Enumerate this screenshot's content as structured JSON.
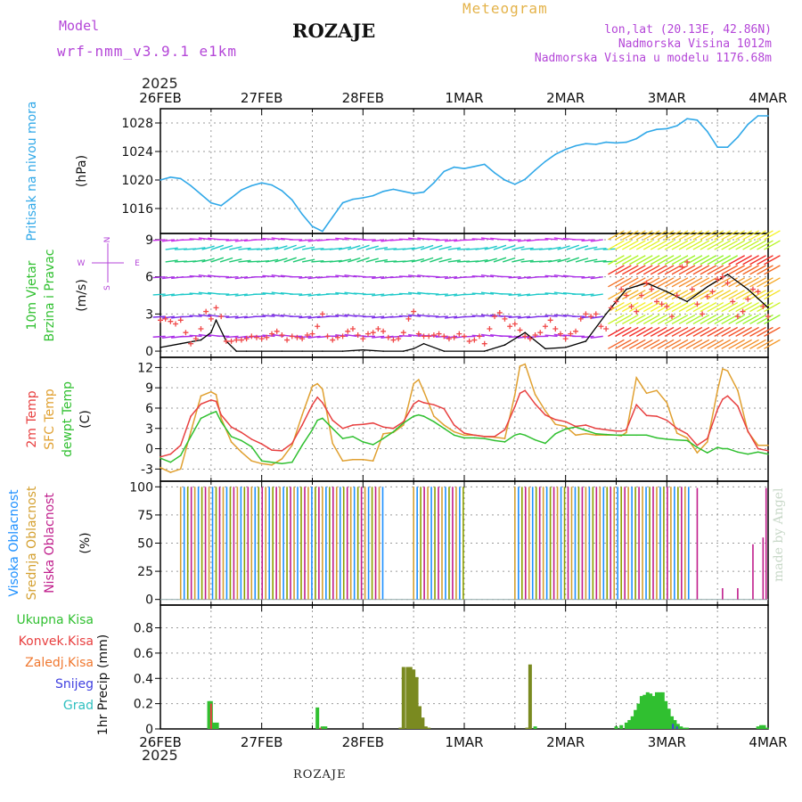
{
  "header": {
    "model_label": "Model",
    "model_name": "wrf-nmm_v3.9.1 e1km",
    "station": "ROZAJE",
    "meteogram": "Meteogram",
    "coords": "lon,lat (20.13E, 42.86N)",
    "elevation": "Nadmorska Visina 1012m",
    "model_elevation": "Nadmorska Visina u modelu 1176.68m",
    "year_top": "2025",
    "year_bottom": "2025",
    "footer": "ROZAJE",
    "credit": "made by Angel"
  },
  "colors": {
    "pressure": "#30a8e8",
    "wind_speed": "#000000",
    "temp_2m": "#e84040",
    "temp_sfc": "#e0a030",
    "dewpoint": "#30c030",
    "cloud_high": "#1e90ff",
    "cloud_mid": "#d4a030",
    "cloud_low": "#c01e8c",
    "precip_total": "#30c030",
    "precip_conv": "#e84040",
    "precip_frz": "#f07830",
    "snow": "#4040e0",
    "hail": "#30c0c0",
    "wind_direction_legend": "#b446d8"
  },
  "chart_data": [
    {
      "type": "line",
      "panel": "pressure",
      "ylabel_lines": [
        "Pritisak na nivou mora",
        "(hPa)"
      ],
      "x_ticks": [
        "26FEB",
        "27FEB",
        "28FEB",
        "1MAR",
        "2MAR",
        "3MAR",
        "4MAR"
      ],
      "ylim": [
        1012.5,
        1030
      ],
      "y_ticks": [
        1016,
        1020,
        1024,
        1028
      ],
      "series": [
        {
          "x": [
            0,
            0.1,
            0.2,
            0.3,
            0.4,
            0.5,
            0.6,
            0.7,
            0.8,
            0.9,
            1.0,
            1.1,
            1.2,
            1.3,
            1.4,
            1.5,
            1.6,
            1.7,
            1.8,
            1.9,
            2.0,
            2.1,
            2.2,
            2.3,
            2.4,
            2.5,
            2.6,
            2.7,
            2.8,
            2.9,
            3.0,
            3.1,
            3.2,
            3.3,
            3.4,
            3.5,
            3.6,
            3.7,
            3.8,
            3.9,
            4.0,
            4.1,
            4.2,
            4.3,
            4.4,
            4.5,
            4.6,
            4.7,
            4.8,
            4.9,
            5.0,
            5.1,
            5.2,
            5.3,
            5.4,
            5.5,
            5.6,
            5.7,
            5.8,
            5.9,
            6.0
          ],
          "values": [
            1020.0,
            1020.4,
            1020.2,
            1019.2,
            1018.0,
            1016.8,
            1016.4,
            1017.5,
            1018.6,
            1019.2,
            1019.6,
            1019.3,
            1018.5,
            1017.2,
            1015.2,
            1013.5,
            1012.8,
            1014.8,
            1016.8,
            1017.3,
            1017.5,
            1017.8,
            1018.4,
            1018.7,
            1018.4,
            1018.1,
            1018.3,
            1019.6,
            1021.2,
            1021.8,
            1021.6,
            1021.9,
            1022.2,
            1021.0,
            1020.0,
            1019.4,
            1020.1,
            1021.4,
            1022.6,
            1023.6,
            1024.3,
            1024.8,
            1025.1,
            1025.0,
            1025.3,
            1025.2,
            1025.3,
            1025.8,
            1026.7,
            1027.1,
            1027.2,
            1027.6,
            1028.6,
            1028.4,
            1026.8,
            1024.6,
            1024.6,
            1026.0,
            1027.8,
            1029.0,
            1029.0
          ]
        }
      ]
    },
    {
      "type": "line",
      "panel": "wind",
      "ylabel_lines": [
        "10m Vjetar",
        "Brzina i Pravac",
        "(m/s)"
      ],
      "legend_compass": {
        "north": "N",
        "east": "E",
        "west": "W",
        "south": "S"
      },
      "ylim": [
        -0.5,
        9.5
      ],
      "y_ticks": [
        0,
        3,
        6,
        9
      ],
      "series": [
        {
          "name": "speed",
          "x": [
            0,
            0.2,
            0.4,
            0.5,
            0.55,
            0.65,
            0.75,
            0.85,
            1.0,
            1.2,
            1.4,
            1.6,
            1.8,
            2.0,
            2.2,
            2.4,
            2.5,
            2.6,
            2.8,
            3.0,
            3.2,
            3.4,
            3.6,
            3.8,
            4.0,
            4.2,
            4.4,
            4.6,
            4.8,
            5.0,
            5.2,
            5.4,
            5.6,
            5.8,
            6.0
          ],
          "values": [
            0.3,
            0.6,
            0.9,
            1.5,
            2.5,
            0.8,
            0.0,
            0.0,
            0.0,
            0.0,
            0.0,
            0.0,
            0.0,
            0.1,
            0.0,
            0.0,
            0.2,
            0.6,
            0.0,
            0.0,
            0.0,
            0.5,
            1.5,
            0.2,
            0.3,
            0.8,
            3.0,
            5.0,
            5.5,
            4.8,
            4.0,
            5.2,
            6.2,
            5.0,
            3.5
          ]
        }
      ],
      "gust_markers_x": [
        0,
        0.05,
        0.1,
        0.15,
        0.2,
        0.25,
        0.3,
        0.35,
        0.4,
        0.45,
        0.5,
        0.55,
        0.6,
        0.65,
        0.7,
        0.75,
        0.8,
        0.85,
        0.9,
        0.95,
        1.0,
        1.05,
        1.1,
        1.15,
        1.2,
        1.25,
        1.3,
        1.35,
        1.4,
        1.45,
        1.5,
        1.55,
        1.6,
        1.65,
        1.7,
        1.75,
        1.8,
        1.85,
        1.9,
        1.95,
        2.0,
        2.05,
        2.1,
        2.15,
        2.2,
        2.25,
        2.3,
        2.35,
        2.4,
        2.45,
        2.5,
        2.55,
        2.6,
        2.65,
        2.7,
        2.75,
        2.8,
        2.85,
        2.9,
        2.95,
        3.0,
        3.05,
        3.1,
        3.15,
        3.2,
        3.25,
        3.3,
        3.35,
        3.4,
        3.45,
        3.5,
        3.55,
        3.6,
        3.65,
        3.7,
        3.75,
        3.8,
        3.85,
        3.9,
        3.95,
        4.0,
        4.05,
        4.1,
        4.15,
        4.2,
        4.25,
        4.3,
        4.35,
        4.4,
        4.45,
        4.5,
        4.55,
        4.6,
        4.65,
        4.7,
        4.75,
        4.8,
        4.85,
        4.9,
        4.95,
        5.0,
        5.05,
        5.1,
        5.15,
        5.2,
        5.25,
        5.3,
        5.35,
        5.4,
        5.45,
        5.5,
        5.55,
        5.6,
        5.65,
        5.7,
        5.75,
        5.8,
        5.85,
        5.9,
        5.95,
        6.0
      ],
      "gust_markers_y": [
        2.5,
        2.6,
        2.4,
        2.2,
        2.5,
        1.5,
        0.6,
        1.0,
        1.8,
        3.2,
        2.6,
        3.5,
        2.8,
        0.8,
        0.8,
        0.9,
        0.9,
        1.0,
        1.2,
        1.1,
        1.0,
        1.1,
        1.4,
        1.6,
        1.3,
        0.9,
        1.2,
        1.1,
        1.0,
        1.3,
        1.4,
        2.0,
        3.0,
        1.2,
        0.9,
        1.1,
        1.2,
        1.6,
        1.8,
        1.3,
        1.0,
        1.4,
        1.5,
        1.8,
        1.6,
        1.1,
        0.9,
        1.0,
        1.5,
        2.6,
        3.2,
        1.4,
        1.2,
        1.2,
        1.3,
        1.4,
        1.2,
        1.0,
        1.1,
        1.4,
        1.2,
        0.8,
        0.9,
        1.2,
        0.6,
        1.8,
        2.8,
        3.1,
        2.6,
        2.0,
        2.2,
        1.7,
        1.2,
        1.0,
        1.3,
        1.5,
        2.0,
        2.5,
        1.8,
        1.4,
        1.0,
        1.4,
        1.6,
        2.6,
        3.0,
        2.8,
        3.0,
        2.0,
        1.8,
        3.5,
        4.0,
        5.0,
        4.5,
        3.6,
        3.2,
        4.5,
        5.5,
        5.0,
        4.0,
        3.8,
        3.6,
        2.8,
        4.5,
        6.8,
        7.2,
        5.0,
        3.8,
        3.0,
        4.4,
        4.8,
        5.8,
        6.0,
        5.5,
        4.0,
        2.8,
        3.2,
        4.2,
        5.0,
        4.8,
        3.6,
        2.8
      ]
    },
    {
      "type": "line",
      "panel": "temperature",
      "ylabel_lines": [
        "2m Temp",
        "SFC Temp",
        "dewpt Temp",
        "(C)"
      ],
      "ylim": [
        -4.8,
        13.5
      ],
      "y_ticks": [
        -3,
        0,
        3,
        6,
        9,
        12
      ],
      "x": [
        0,
        0.1,
        0.2,
        0.3,
        0.4,
        0.5,
        0.55,
        0.6,
        0.7,
        0.8,
        0.9,
        1.0,
        1.1,
        1.2,
        1.3,
        1.4,
        1.5,
        1.55,
        1.6,
        1.7,
        1.8,
        1.9,
        2.0,
        2.1,
        2.2,
        2.3,
        2.4,
        2.5,
        2.55,
        2.6,
        2.7,
        2.8,
        2.9,
        3.0,
        3.1,
        3.2,
        3.3,
        3.4,
        3.5,
        3.55,
        3.6,
        3.7,
        3.8,
        3.9,
        4.0,
        4.1,
        4.2,
        4.3,
        4.4,
        4.5,
        4.55,
        4.6,
        4.7,
        4.8,
        4.9,
        5.0,
        5.1,
        5.2,
        5.3,
        5.4,
        5.5,
        5.55,
        5.6,
        5.7,
        5.8,
        5.9,
        6.0
      ],
      "series": [
        {
          "name": "2m Temp",
          "values": [
            -1.2,
            -0.8,
            0.5,
            4.8,
            6.6,
            7.2,
            7.0,
            5.0,
            3.2,
            2.4,
            1.4,
            0.7,
            -0.2,
            -0.3,
            0.8,
            3.5,
            6.5,
            7.6,
            6.8,
            4.2,
            3.0,
            3.5,
            3.6,
            3.8,
            3.2,
            3.0,
            4.0,
            6.6,
            7.1,
            6.8,
            6.5,
            5.9,
            3.5,
            2.3,
            2.0,
            1.8,
            1.8,
            2.8,
            6.2,
            8.2,
            8.6,
            6.6,
            5.0,
            4.3,
            4.0,
            3.3,
            3.5,
            3.0,
            2.8,
            2.6,
            2.6,
            2.8,
            6.5,
            4.9,
            4.8,
            4.2,
            3.0,
            2.2,
            0.5,
            1.5,
            5.8,
            7.3,
            7.8,
            6.3,
            2.6,
            0.0,
            -0.3
          ]
        },
        {
          "name": "SFC Temp",
          "values": [
            -2.8,
            -3.5,
            -3.0,
            2.5,
            7.8,
            8.4,
            8.0,
            4.5,
            1.0,
            -0.5,
            -1.8,
            -2.2,
            -2.4,
            -1.5,
            0.5,
            5.0,
            9.2,
            9.6,
            8.8,
            0.8,
            -1.8,
            -1.6,
            -1.6,
            -1.8,
            2.2,
            2.4,
            3.5,
            9.6,
            10.2,
            8.5,
            4.8,
            3.5,
            2.5,
            2.0,
            2.0,
            1.8,
            1.7,
            1.5,
            8.0,
            12.2,
            12.5,
            8.0,
            5.6,
            3.6,
            3.3,
            2.0,
            2.2,
            2.0,
            2.0,
            2.0,
            1.9,
            2.4,
            10.5,
            8.2,
            8.6,
            6.8,
            2.3,
            1.6,
            -0.6,
            1.0,
            8.6,
            11.8,
            11.5,
            8.6,
            2.5,
            0.5,
            0.5
          ]
        },
        {
          "name": "dewpt Temp",
          "values": [
            -1.4,
            -2.0,
            -1.0,
            1.8,
            4.5,
            5.2,
            5.5,
            4.0,
            1.8,
            1.2,
            0.3,
            -1.8,
            -2.0,
            -2.2,
            -2.0,
            0.5,
            2.8,
            4.2,
            4.5,
            3.0,
            1.5,
            1.8,
            1.0,
            0.6,
            1.5,
            2.5,
            3.8,
            4.8,
            5.0,
            4.8,
            4.0,
            3.0,
            2.0,
            1.6,
            1.6,
            1.5,
            1.2,
            1.0,
            2.0,
            2.2,
            2.0,
            1.3,
            0.8,
            2.2,
            2.9,
            3.2,
            2.7,
            2.2,
            2.1,
            2.0,
            2.0,
            2.0,
            2.0,
            2.0,
            1.6,
            1.4,
            1.3,
            1.2,
            0.2,
            -0.6,
            0.2,
            0.0,
            0.0,
            -0.5,
            -0.8,
            -0.5,
            -0.8
          ]
        }
      ]
    },
    {
      "type": "bar",
      "panel": "cloud_cover",
      "ylabel_lines": [
        "Visoka Oblacnost",
        "Srednja Oblacnost",
        "Niska Oblacnost",
        "(%)"
      ],
      "ylim": [
        -5,
        105
      ],
      "y_ticks": [
        0,
        25,
        50,
        75,
        100
      ],
      "overcast_windows": [
        [
          0.2,
          2.2
        ],
        [
          2.5,
          3.0
        ],
        [
          3.5,
          5.25
        ]
      ],
      "scattered_low": [
        {
          "x": 5.3,
          "value": 99
        },
        {
          "x": 5.55,
          "value": 10
        },
        {
          "x": 5.7,
          "value": 10
        },
        {
          "x": 5.85,
          "value": 49
        },
        {
          "x": 5.95,
          "value": 55
        },
        {
          "x": 5.98,
          "value": 99
        }
      ]
    },
    {
      "type": "bar",
      "panel": "precipitation",
      "ylabel_lines": [
        "1hr Precip",
        "(mm)"
      ],
      "legend": [
        "Ukupna Kisa",
        "Konvek.Kisa",
        "Zaledj.Kisa",
        "Snijeg",
        "Grad"
      ],
      "ylim": [
        0,
        0.98
      ],
      "y_ticks": [
        0,
        0.2,
        0.4,
        0.6,
        0.8
      ],
      "series": [
        {
          "name": "Ukupna Kisa",
          "x": [
            0.48,
            0.5,
            0.53,
            0.56,
            1.55,
            1.6,
            1.63,
            2.37,
            2.4,
            2.44,
            2.47,
            2.5,
            2.53,
            2.56,
            2.59,
            2.62,
            2.65,
            3.62,
            3.65,
            3.7,
            4.5,
            4.55,
            4.6,
            4.63,
            4.66,
            4.69,
            4.72,
            4.75,
            4.78,
            4.81,
            4.84,
            4.87,
            4.9,
            4.93,
            4.96,
            4.99,
            5.02,
            5.05,
            5.08,
            5.11,
            5.14,
            5.17,
            5.2,
            5.9,
            5.93,
            5.96,
            5.99
          ],
          "values": [
            0.22,
            0.22,
            0.05,
            0.05,
            0.17,
            0.02,
            0.02,
            0.01,
            0.49,
            0.49,
            0.49,
            0.47,
            0.41,
            0.18,
            0.09,
            0.02,
            0.01,
            0.01,
            0.51,
            0.02,
            0.02,
            0.03,
            0.05,
            0.07,
            0.1,
            0.15,
            0.2,
            0.26,
            0.27,
            0.29,
            0.28,
            0.26,
            0.29,
            0.29,
            0.29,
            0.22,
            0.16,
            0.1,
            0.07,
            0.04,
            0.02,
            0.01,
            0.01,
            0.02,
            0.03,
            0.03,
            0.01
          ]
        },
        {
          "name": "Konvek.Kisa",
          "x": [
            0.5,
            1.58
          ],
          "values": [
            0.2,
            0.01
          ]
        },
        {
          "name": "Snijeg",
          "x": [
            5.06,
            5.1
          ],
          "values": [
            0.04,
            0.02
          ]
        }
      ]
    }
  ]
}
